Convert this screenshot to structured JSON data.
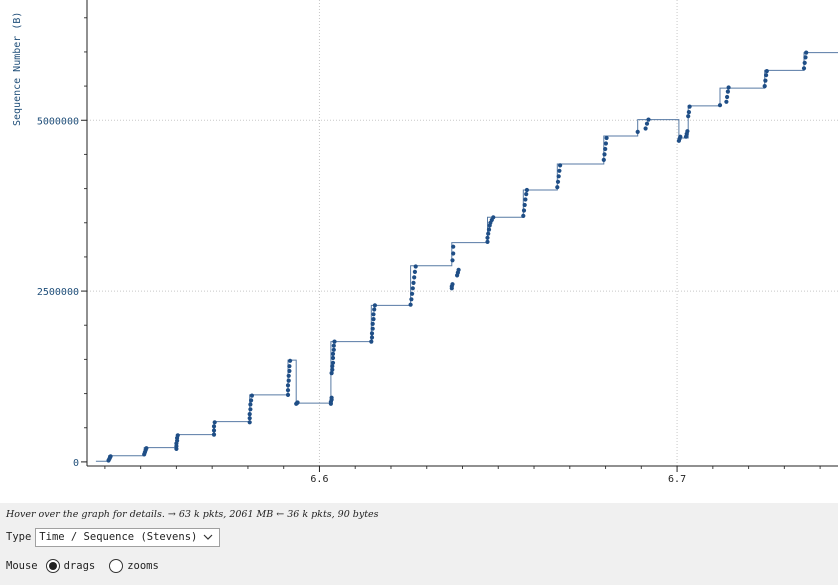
{
  "plot": {
    "y_axis_title": "Sequence Number (B)",
    "series_color": "#1f4e86",
    "grid_color": "#c8c8c8"
  },
  "chart_data": {
    "type": "scatter",
    "ylabel": "Sequence Number (B)",
    "xlabel": "",
    "x_ticks": [
      "6.6",
      "6.7"
    ],
    "y_ticks": [
      "0",
      "2500000",
      "5000000"
    ],
    "xlim": [
      6.535,
      6.745
    ],
    "ylim": [
      -60000,
      6760000
    ],
    "grid": true,
    "points": [
      [
        6.541,
        20000
      ],
      [
        6.5412,
        40000
      ],
      [
        6.5414,
        60000
      ],
      [
        6.5416,
        80000
      ],
      [
        6.551,
        110000
      ],
      [
        6.5512,
        140000
      ],
      [
        6.5514,
        170000
      ],
      [
        6.5516,
        200000
      ],
      [
        6.56,
        190000
      ],
      [
        6.56,
        230000
      ],
      [
        6.56,
        270000
      ],
      [
        6.5602,
        310000
      ],
      [
        6.5602,
        350000
      ],
      [
        6.5604,
        390000
      ],
      [
        6.5705,
        400000
      ],
      [
        6.5705,
        460000
      ],
      [
        6.5705,
        520000
      ],
      [
        6.5707,
        580000
      ],
      [
        6.5805,
        580000
      ],
      [
        6.5805,
        640000
      ],
      [
        6.5805,
        700000
      ],
      [
        6.5807,
        770000
      ],
      [
        6.5807,
        840000
      ],
      [
        6.5809,
        900000
      ],
      [
        6.5811,
        970000
      ],
      [
        6.5912,
        980000
      ],
      [
        6.5912,
        1050000
      ],
      [
        6.5912,
        1120000
      ],
      [
        6.5914,
        1190000
      ],
      [
        6.5914,
        1260000
      ],
      [
        6.5916,
        1330000
      ],
      [
        6.5916,
        1400000
      ],
      [
        6.5918,
        1480000
      ],
      [
        6.5935,
        850000
      ],
      [
        6.5937,
        860000
      ],
      [
        6.5939,
        870000
      ],
      [
        6.6032,
        850000
      ],
      [
        6.6032,
        880000
      ],
      [
        6.6034,
        910000
      ],
      [
        6.6034,
        940000
      ],
      [
        6.6034,
        1300000
      ],
      [
        6.6036,
        1350000
      ],
      [
        6.6036,
        1400000
      ],
      [
        6.6038,
        1450000
      ],
      [
        6.6038,
        1520000
      ],
      [
        6.6038,
        1580000
      ],
      [
        6.604,
        1640000
      ],
      [
        6.604,
        1700000
      ],
      [
        6.6042,
        1760000
      ],
      [
        6.6145,
        1760000
      ],
      [
        6.6147,
        1820000
      ],
      [
        6.6147,
        1880000
      ],
      [
        6.6149,
        1950000
      ],
      [
        6.6149,
        2020000
      ],
      [
        6.6151,
        2090000
      ],
      [
        6.6151,
        2160000
      ],
      [
        6.6153,
        2230000
      ],
      [
        6.6155,
        2290000
      ],
      [
        6.6255,
        2300000
      ],
      [
        6.6257,
        2380000
      ],
      [
        6.6259,
        2460000
      ],
      [
        6.6261,
        2540000
      ],
      [
        6.6263,
        2620000
      ],
      [
        6.6265,
        2700000
      ],
      [
        6.6267,
        2780000
      ],
      [
        6.6269,
        2860000
      ],
      [
        6.637,
        2540000
      ],
      [
        6.637,
        2570000
      ],
      [
        6.6372,
        2600000
      ],
      [
        6.6372,
        2950000
      ],
      [
        6.6374,
        3050000
      ],
      [
        6.6374,
        3150000
      ],
      [
        6.6385,
        2730000
      ],
      [
        6.6387,
        2770000
      ],
      [
        6.6389,
        2810000
      ],
      [
        6.647,
        3220000
      ],
      [
        6.647,
        3280000
      ],
      [
        6.6472,
        3340000
      ],
      [
        6.6474,
        3400000
      ],
      [
        6.6476,
        3460000
      ],
      [
        6.6478,
        3500000
      ],
      [
        6.6482,
        3540000
      ],
      [
        6.6486,
        3580000
      ],
      [
        6.657,
        3600000
      ],
      [
        6.6572,
        3680000
      ],
      [
        6.6574,
        3760000
      ],
      [
        6.6576,
        3840000
      ],
      [
        6.6578,
        3920000
      ],
      [
        6.658,
        3980000
      ],
      [
        6.6665,
        4020000
      ],
      [
        6.6667,
        4100000
      ],
      [
        6.6669,
        4180000
      ],
      [
        6.6671,
        4260000
      ],
      [
        6.6673,
        4340000
      ],
      [
        6.6795,
        4420000
      ],
      [
        6.6797,
        4500000
      ],
      [
        6.6799,
        4580000
      ],
      [
        6.6801,
        4660000
      ],
      [
        6.6803,
        4740000
      ],
      [
        6.689,
        4830000
      ],
      [
        6.6912,
        4880000
      ],
      [
        6.6916,
        4950000
      ],
      [
        6.692,
        5010000
      ],
      [
        6.7005,
        4700000
      ],
      [
        6.7007,
        4730000
      ],
      [
        6.7009,
        4760000
      ],
      [
        6.7025,
        4760000
      ],
      [
        6.7027,
        4800000
      ],
      [
        6.7029,
        4840000
      ],
      [
        6.7031,
        5060000
      ],
      [
        6.7033,
        5120000
      ],
      [
        6.7035,
        5200000
      ],
      [
        6.712,
        5220000
      ],
      [
        6.7138,
        5270000
      ],
      [
        6.714,
        5340000
      ],
      [
        6.7142,
        5420000
      ],
      [
        6.7144,
        5480000
      ],
      [
        6.7245,
        5500000
      ],
      [
        6.7247,
        5580000
      ],
      [
        6.7249,
        5660000
      ],
      [
        6.7251,
        5720000
      ],
      [
        6.7355,
        5760000
      ],
      [
        6.7357,
        5840000
      ],
      [
        6.7359,
        5920000
      ],
      [
        6.7361,
        5990000
      ]
    ],
    "line": [
      [
        6.5375,
        10000
      ],
      [
        6.541,
        10000
      ],
      [
        6.541,
        90000
      ],
      [
        6.551,
        90000
      ],
      [
        6.551,
        210000
      ],
      [
        6.56,
        210000
      ],
      [
        6.56,
        400000
      ],
      [
        6.5705,
        400000
      ],
      [
        6.5705,
        590000
      ],
      [
        6.5805,
        590000
      ],
      [
        6.5805,
        980000
      ],
      [
        6.5912,
        980000
      ],
      [
        6.5912,
        1490000
      ],
      [
        6.5935,
        1490000
      ],
      [
        6.5935,
        860000
      ],
      [
        6.6032,
        860000
      ],
      [
        6.6032,
        1760000
      ],
      [
        6.6145,
        1760000
      ],
      [
        6.6145,
        2290000
      ],
      [
        6.6255,
        2290000
      ],
      [
        6.6255,
        2870000
      ],
      [
        6.637,
        2870000
      ],
      [
        6.637,
        3210000
      ],
      [
        6.647,
        3210000
      ],
      [
        6.647,
        3580000
      ],
      [
        6.657,
        3580000
      ],
      [
        6.657,
        3980000
      ],
      [
        6.6665,
        3980000
      ],
      [
        6.6665,
        4360000
      ],
      [
        6.6795,
        4360000
      ],
      [
        6.6795,
        4770000
      ],
      [
        6.689,
        4770000
      ],
      [
        6.689,
        5010000
      ],
      [
        6.7005,
        5010000
      ],
      [
        6.7005,
        4740000
      ],
      [
        6.7031,
        4740000
      ],
      [
        6.7031,
        5210000
      ],
      [
        6.712,
        5210000
      ],
      [
        6.712,
        5470000
      ],
      [
        6.7245,
        5470000
      ],
      [
        6.7245,
        5730000
      ],
      [
        6.7355,
        5730000
      ],
      [
        6.7355,
        5990000
      ],
      [
        6.745,
        5990000
      ]
    ]
  },
  "status": {
    "hint": "Hover over the graph for details. → 63 k pkts, 2061 MB ← 36 k pkts, 90 bytes"
  },
  "controls": {
    "type_label": "Type",
    "type_value": "Time / Sequence (Stevens)",
    "mouse_label": "Mouse",
    "drags_label": "drags",
    "zooms_label": "zooms",
    "mouse_mode": "drags"
  }
}
